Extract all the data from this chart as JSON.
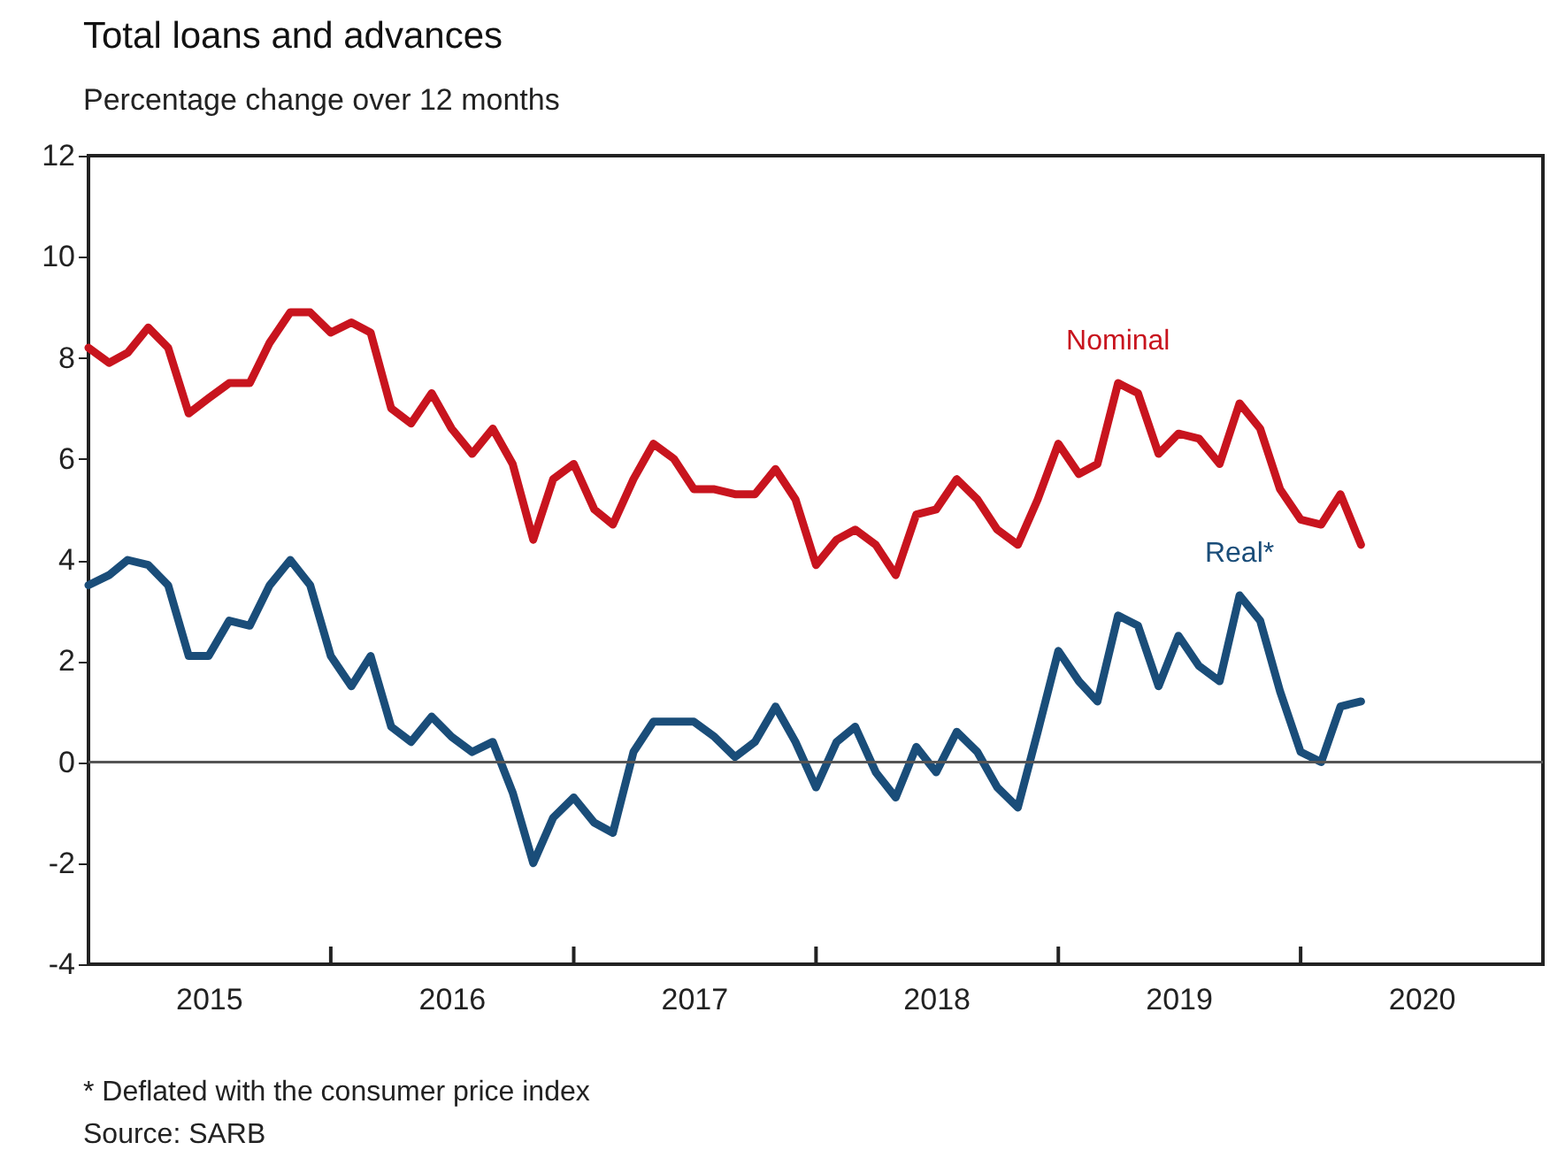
{
  "chart_data": {
    "type": "line",
    "title": "Total loans and advances",
    "subtitle": "Percentage change over 12 months",
    "x": [
      "2015-01",
      "2015-02",
      "2015-03",
      "2015-04",
      "2015-05",
      "2015-06",
      "2015-07",
      "2015-08",
      "2015-09",
      "2015-10",
      "2015-11",
      "2015-12",
      "2016-01",
      "2016-02",
      "2016-03",
      "2016-04",
      "2016-05",
      "2016-06",
      "2016-07",
      "2016-08",
      "2016-09",
      "2016-10",
      "2016-11",
      "2016-12",
      "2017-01",
      "2017-02",
      "2017-03",
      "2017-04",
      "2017-05",
      "2017-06",
      "2017-07",
      "2017-08",
      "2017-09",
      "2017-10",
      "2017-11",
      "2017-12",
      "2018-01",
      "2018-02",
      "2018-03",
      "2018-04",
      "2018-05",
      "2018-06",
      "2018-07",
      "2018-08",
      "2018-09",
      "2018-10",
      "2018-11",
      "2018-12",
      "2019-01",
      "2019-02",
      "2019-03",
      "2019-04",
      "2019-05",
      "2019-06",
      "2019-07",
      "2019-08",
      "2019-09",
      "2019-10",
      "2019-11",
      "2019-12",
      "2020-01",
      "2020-02",
      "2020-03",
      "2020-04"
    ],
    "series": [
      {
        "name": "Nominal",
        "color": "#c8141e",
        "values": [
          8.2,
          7.9,
          8.1,
          8.6,
          8.2,
          6.9,
          7.2,
          7.5,
          7.5,
          8.3,
          8.9,
          8.9,
          8.5,
          8.7,
          8.5,
          7.0,
          6.7,
          7.3,
          6.6,
          6.1,
          6.6,
          5.9,
          4.4,
          5.6,
          5.9,
          5.0,
          4.7,
          5.6,
          6.3,
          6.0,
          5.4,
          5.4,
          5.3,
          5.3,
          5.8,
          5.2,
          3.9,
          4.4,
          4.6,
          4.3,
          3.7,
          4.9,
          5.0,
          5.6,
          5.2,
          4.6,
          4.3,
          5.2,
          6.3,
          5.7,
          5.9,
          7.5,
          7.3,
          6.1,
          6.5,
          6.4,
          5.9,
          7.1,
          6.6,
          5.4,
          4.8,
          4.7,
          5.3,
          4.3
        ]
      },
      {
        "name": "Real*",
        "color": "#1a4d79",
        "values": [
          3.5,
          3.7,
          4.0,
          3.9,
          3.5,
          2.1,
          2.1,
          2.8,
          2.7,
          3.5,
          4.0,
          3.5,
          2.1,
          1.5,
          2.1,
          0.7,
          0.4,
          0.9,
          0.5,
          0.2,
          0.4,
          -0.6,
          -2.0,
          -1.1,
          -0.7,
          -1.2,
          -1.4,
          0.2,
          0.8,
          0.8,
          0.8,
          0.5,
          0.1,
          0.4,
          1.1,
          0.4,
          -0.5,
          0.4,
          0.7,
          -0.2,
          -0.7,
          0.3,
          -0.2,
          0.6,
          0.2,
          -0.5,
          -0.9,
          0.6,
          2.2,
          1.6,
          1.2,
          2.9,
          2.7,
          1.5,
          2.5,
          1.9,
          1.6,
          3.3,
          2.8,
          1.4,
          0.2,
          0.0,
          1.1,
          1.2
        ]
      }
    ],
    "xlim": [
      "2015-01-01",
      "2020-12-31"
    ],
    "xticks": [
      {
        "value": "2015-07-01",
        "label": "2015"
      },
      {
        "value": "2016-07-01",
        "label": "2016"
      },
      {
        "value": "2017-07-01",
        "label": "2017"
      },
      {
        "value": "2018-07-01",
        "label": "2018"
      },
      {
        "value": "2019-07-01",
        "label": "2019"
      },
      {
        "value": "2020-07-01",
        "label": "2020"
      },
      {
        "value": "2016-01-01",
        "label": null
      },
      {
        "value": "2017-01-01",
        "label": null
      },
      {
        "value": "2018-01-01",
        "label": null
      },
      {
        "value": "2019-01-01",
        "label": null
      },
      {
        "value": "2020-01-01",
        "label": null
      }
    ],
    "ylim": [
      -4,
      12
    ],
    "yticks": [
      -4,
      -2,
      0,
      2,
      4,
      6,
      8,
      10,
      12
    ],
    "ref_lines": [
      {
        "axis": "y",
        "value": 0,
        "color": "#555555"
      }
    ],
    "grid": false,
    "legend": false,
    "marker": "none",
    "line_style": "solid",
    "annotations": [
      "* Deflated with the consumer price index",
      "Source: SARB"
    ]
  }
}
